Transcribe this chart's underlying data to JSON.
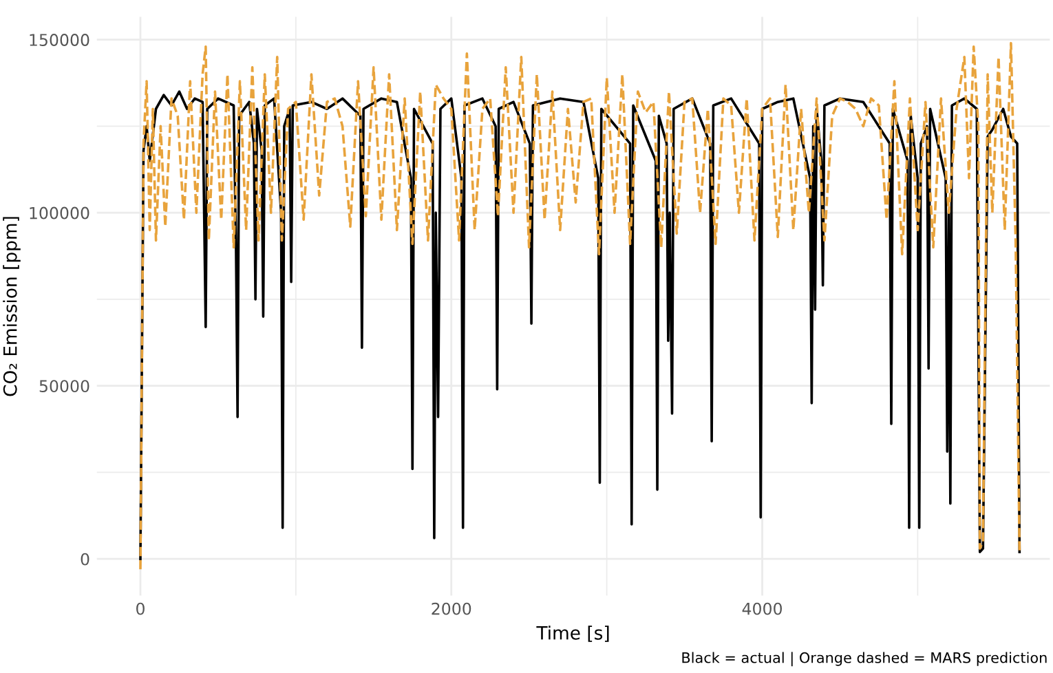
{
  "chart_data": {
    "type": "line",
    "xlabel": "Time [s]",
    "ylabel": "CO₂ Emission [ppm]",
    "annotations": [
      "Black = actual | Orange dashed = MARS prediction"
    ],
    "xlim": [
      -280,
      5850
    ],
    "ylim": [
      -10600,
      156600
    ],
    "xticks": [
      0,
      {
        "value": 1000,
        "label": null
      },
      2000,
      {
        "value": 3000,
        "label": null
      },
      4000,
      {
        "value": 5000,
        "label": null
      }
    ],
    "yticks": [
      0,
      {
        "value": 25000,
        "label": null
      },
      50000,
      {
        "value": 75000,
        "label": null
      },
      100000,
      {
        "value": 125000,
        "label": null
      },
      150000
    ],
    "grid": true,
    "legend": false,
    "series": [
      {
        "color": "#000000",
        "line_style": "solid",
        "x": [
          0,
          20,
          40,
          60,
          100,
          150,
          200,
          250,
          300,
          350,
          400,
          410,
          420,
          430,
          500,
          600,
          615,
          625,
          635,
          700,
          730,
          740,
          750,
          780,
          790,
          800,
          860,
          905,
          915,
          925,
          960,
          970,
          980,
          1100,
          1200,
          1300,
          1415,
          1425,
          1435,
          1550,
          1650,
          1740,
          1750,
          1760,
          1880,
          1890,
          1900,
          1915,
          1930,
          2000,
          2065,
          2075,
          2085,
          2200,
          2285,
          2295,
          2305,
          2400,
          2505,
          2515,
          2525,
          2700,
          2850,
          2945,
          2955,
          2965,
          3150,
          3160,
          3170,
          3315,
          3325,
          3335,
          3385,
          3395,
          3405,
          3420,
          3430,
          3550,
          3665,
          3675,
          3685,
          3800,
          3980,
          3990,
          4000,
          4100,
          4200,
          4308,
          4318,
          4328,
          4340,
          4350,
          4380,
          4390,
          4400,
          4500,
          4650,
          4820,
          4830,
          4840,
          4935,
          4945,
          4955,
          5000,
          5010,
          5020,
          5060,
          5070,
          5080,
          5180,
          5190,
          5200,
          5210,
          5220,
          5300,
          5380,
          5400,
          5420,
          5450,
          5480,
          5550,
          5600,
          5640,
          5655
        ],
        "values": [
          0,
          118000,
          125000,
          115000,
          130000,
          134000,
          131000,
          135000,
          130000,
          133000,
          132000,
          100000,
          67000,
          130000,
          133000,
          131000,
          90000,
          41000,
          128000,
          132000,
          120000,
          75000,
          130000,
          118000,
          70000,
          131000,
          133000,
          100000,
          9000,
          125000,
          130000,
          80000,
          131000,
          132000,
          130000,
          133000,
          128000,
          61000,
          130000,
          133000,
          132000,
          110000,
          26000,
          130000,
          120000,
          6000,
          100000,
          41000,
          130000,
          133000,
          110000,
          9000,
          131000,
          133000,
          125000,
          49000,
          130000,
          132000,
          120000,
          68000,
          131000,
          133000,
          132000,
          110000,
          22000,
          130000,
          120000,
          10000,
          131000,
          115000,
          20000,
          128000,
          120000,
          63000,
          100000,
          42000,
          130000,
          133000,
          120000,
          34000,
          131000,
          133000,
          120000,
          12000,
          130000,
          132000,
          133000,
          110000,
          45000,
          125000,
          72000,
          130000,
          115000,
          79000,
          131000,
          133000,
          132000,
          120000,
          39000,
          130000,
          115000,
          9000,
          128000,
          110000,
          9000,
          120000,
          125000,
          55000,
          130000,
          110000,
          31000,
          100000,
          16000,
          131000,
          133000,
          130000,
          2000,
          3000,
          122000,
          124000,
          130000,
          122000,
          120000,
          2000
        ]
      },
      {
        "color": "#e8a33c",
        "line_style": "dashed",
        "x": [
          0,
          20,
          40,
          60,
          80,
          100,
          130,
          160,
          200,
          240,
          280,
          320,
          360,
          400,
          420,
          440,
          480,
          520,
          560,
          600,
          640,
          680,
          720,
          760,
          800,
          840,
          880,
          910,
          950,
          1000,
          1050,
          1100,
          1150,
          1200,
          1250,
          1300,
          1350,
          1400,
          1450,
          1500,
          1550,
          1600,
          1650,
          1700,
          1750,
          1800,
          1850,
          1900,
          1950,
          2000,
          2050,
          2100,
          2150,
          2200,
          2250,
          2300,
          2350,
          2400,
          2450,
          2500,
          2550,
          2600,
          2650,
          2700,
          2750,
          2800,
          2850,
          2900,
          2950,
          3000,
          3050,
          3100,
          3150,
          3200,
          3250,
          3300,
          3350,
          3400,
          3450,
          3500,
          3550,
          3600,
          3650,
          3700,
          3750,
          3800,
          3850,
          3900,
          3950,
          4000,
          4050,
          4100,
          4150,
          4200,
          4250,
          4300,
          4350,
          4400,
          4450,
          4500,
          4550,
          4600,
          4650,
          4700,
          4750,
          4800,
          4850,
          4900,
          4950,
          5000,
          5050,
          5100,
          5150,
          5200,
          5250,
          5300,
          5330,
          5360,
          5390,
          5400,
          5420,
          5450,
          5480,
          5520,
          5560,
          5600,
          5630,
          5655
        ],
        "values": [
          -3000,
          120000,
          138000,
          95000,
          130000,
          92000,
          125000,
          96000,
          133000,
          128000,
          98000,
          138000,
          100000,
          140000,
          148000,
          92000,
          135000,
          98000,
          140000,
          90000,
          138000,
          95000,
          142000,
          92000,
          140000,
          100000,
          145000,
          92000,
          130000,
          132000,
          98000,
          140000,
          105000,
          132000,
          133000,
          125000,
          96000,
          138000,
          99000,
          142000,
          98000,
          140000,
          95000,
          133000,
          91000,
          135000,
          92000,
          137000,
          133000,
          130000,
          92000,
          146000,
          95000,
          130000,
          133000,
          99000,
          142000,
          100000,
          145000,
          90000,
          140000,
          98000,
          135000,
          95000,
          130000,
          103000,
          132000,
          133000,
          88000,
          139000,
          100000,
          140000,
          91000,
          135000,
          129000,
          132000,
          90000,
          135000,
          94000,
          132000,
          133000,
          100000,
          130000,
          91000,
          133000,
          131000,
          100000,
          133000,
          92000,
          130000,
          133000,
          93000,
          137000,
          95000,
          130000,
          100000,
          133000,
          92000,
          128000,
          133000,
          132000,
          130000,
          125000,
          133000,
          131000,
          98000,
          138000,
          88000,
          133000,
          95000,
          132000,
          90000,
          133000,
          100000,
          130000,
          145000,
          110000,
          148000,
          125000,
          3000,
          5000,
          140000,
          100000,
          145000,
          95000,
          149000,
          92000,
          2000
        ]
      }
    ]
  }
}
